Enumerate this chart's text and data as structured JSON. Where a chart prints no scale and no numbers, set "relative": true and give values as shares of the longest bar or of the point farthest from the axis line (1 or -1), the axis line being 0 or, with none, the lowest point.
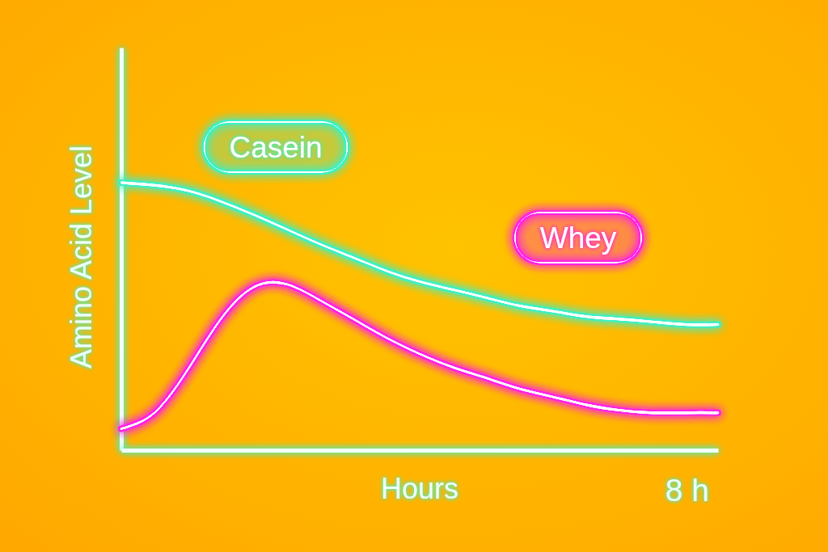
{
  "chart_data": {
    "type": "line",
    "xlabel": "Hours",
    "ylabel": "Amino Acid Level",
    "relative": true,
    "categories": [
      null,
      null,
      null,
      null,
      null,
      null,
      null,
      null,
      null,
      null,
      null,
      null,
      null,
      null,
      null,
      null,
      null,
      null,
      null
    ],
    "annotations": [
      "8 h"
    ],
    "series": [
      {
        "name": "Casein",
        "color": "#3ef0c4",
        "values": [
          1.0,
          0.99,
          0.97,
          0.93,
          0.88,
          0.825,
          0.77,
          0.72,
          0.67,
          0.63,
          0.6,
          0.57,
          0.54,
          0.52,
          0.5,
          0.49,
          0.48,
          0.47,
          0.47
        ]
      },
      {
        "name": "Whey",
        "color": "#ff22e4",
        "values": [
          0.08,
          0.14,
          0.3,
          0.49,
          0.61,
          0.62,
          0.56,
          0.49,
          0.42,
          0.36,
          0.31,
          0.27,
          0.23,
          0.2,
          0.17,
          0.15,
          0.14,
          0.14,
          0.14
        ]
      }
    ]
  }
}
